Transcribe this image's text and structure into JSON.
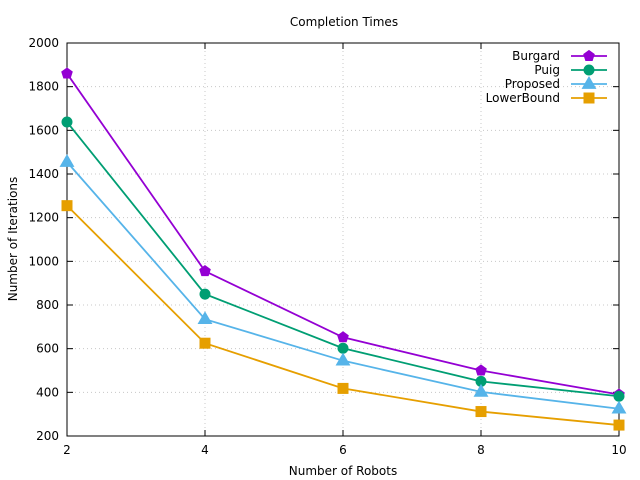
{
  "chart_data": {
    "type": "line",
    "title": "Completion Times",
    "xlabel": "Number of Robots",
    "ylabel": "Number of Iterations",
    "xlim": [
      2,
      10
    ],
    "ylim": [
      200,
      2000
    ],
    "xticks": [
      2,
      4,
      6,
      8,
      10
    ],
    "yticks": [
      200,
      400,
      600,
      800,
      1000,
      1200,
      1400,
      1600,
      1800,
      2000
    ],
    "grid": true,
    "legend_position": "top-right",
    "x": [
      2,
      4,
      6,
      8,
      10
    ],
    "series": [
      {
        "name": "Burgard",
        "color": "#9400d3",
        "marker": "pentagon",
        "values": [
          1860,
          955,
          652,
          500,
          390
        ]
      },
      {
        "name": "Puig",
        "color": "#009e73",
        "marker": "circle",
        "values": [
          1638,
          850,
          602,
          450,
          382
        ]
      },
      {
        "name": "Proposed",
        "color": "#56b4e9",
        "marker": "triangle",
        "values": [
          1455,
          735,
          545,
          402,
          325
        ]
      },
      {
        "name": "LowerBound",
        "color": "#e69f00",
        "marker": "square",
        "values": [
          1255,
          625,
          418,
          312,
          250
        ]
      }
    ]
  }
}
